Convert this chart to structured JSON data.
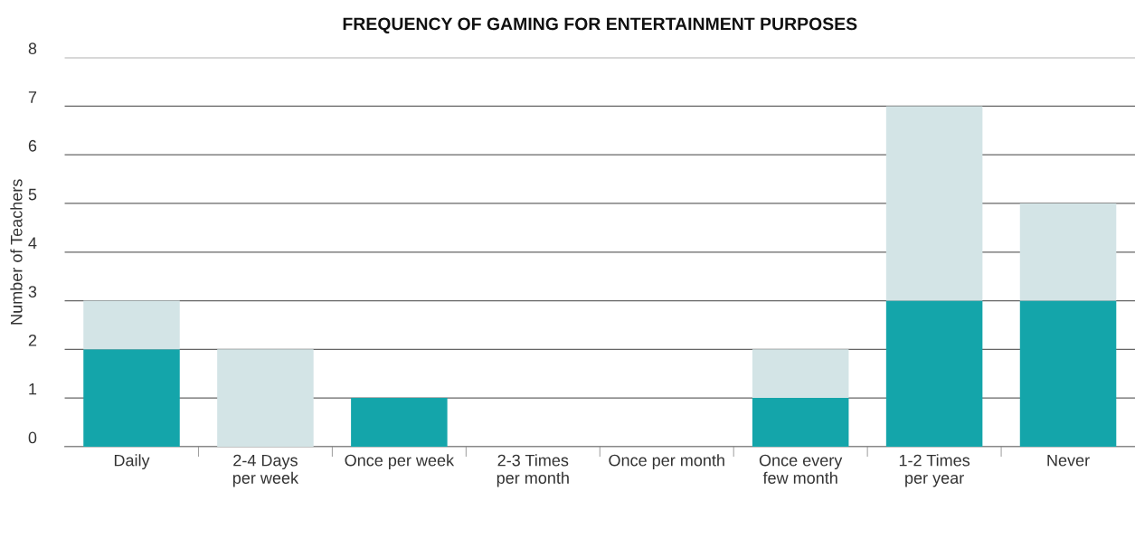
{
  "chart_data": {
    "type": "bar",
    "title": "FREQUENCY OF GAMING FOR ENTERTAINMENT PURPOSES",
    "ylabel": "Number of Teachers",
    "categories": [
      "Daily",
      "2-4 Days\nper week",
      "Once per week",
      "2-3 Times\nper month",
      "Once per month",
      "Once every\nfew month",
      "1-2 Times\nper year",
      "Never"
    ],
    "stacked": true,
    "series": [
      {
        "color": "#14a5aa",
        "values": [
          2,
          0,
          1,
          0,
          0,
          1,
          3,
          3
        ]
      },
      {
        "color": "#d3e4e6",
        "values": [
          1,
          2,
          0,
          0,
          0,
          1,
          4,
          2
        ]
      }
    ],
    "ylim": [
      0,
      8
    ],
    "yticks": [
      0,
      1,
      2,
      3,
      4,
      5,
      6,
      7,
      8
    ],
    "grid": "y"
  }
}
